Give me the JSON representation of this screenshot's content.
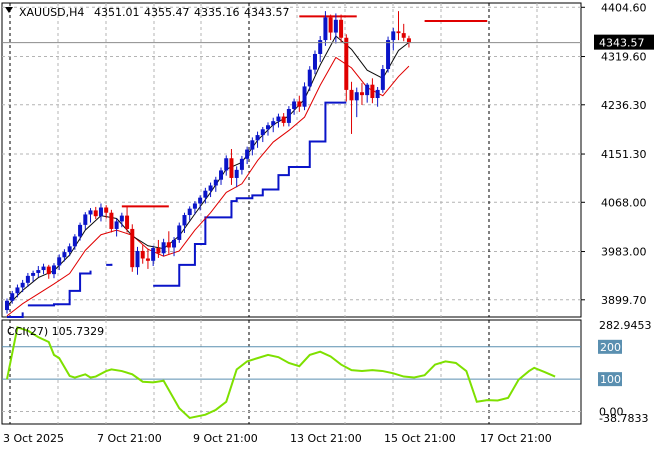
{
  "header": {
    "symbol": "XAUUSD,H4",
    "open": "4351.01",
    "high": "4355.47",
    "low": "4335.16",
    "close": "4343.57"
  },
  "price_tag": "4343.57",
  "cci_label": "CCI(27) 105.7329",
  "colors": {
    "bull": "#0a14c8",
    "bear": "#e00000",
    "fast_ma": "#0a0a0a",
    "slow_ma": "#e00000",
    "stop_line": "#0a14c8",
    "cci_line": "#7ee000",
    "level_line": "#5a8fb0",
    "grid": "#b4b4b4"
  },
  "chart_data": [
    {
      "type": "candlestick",
      "name": "XAUUSD H4",
      "price_axis_ticks": [
        "4404.60",
        "4319.60",
        "4236.30",
        "4151.30",
        "4068.00",
        "3983.00",
        "3899.70"
      ],
      "time_axis_ticks": [
        "3 Oct 2025",
        "7 Oct 21:00",
        "9 Oct 21:00",
        "13 Oct 21:00",
        "15 Oct 21:00",
        "17 Oct 21:00"
      ],
      "ylim": [
        3870,
        4412
      ],
      "candles": [
        [
          3882,
          3902,
          3876,
          3898
        ],
        [
          3898,
          3915,
          3893,
          3911
        ],
        [
          3911,
          3926,
          3904,
          3921
        ],
        [
          3921,
          3934,
          3913,
          3929
        ],
        [
          3929,
          3946,
          3922,
          3941
        ],
        [
          3941,
          3950,
          3931,
          3946
        ],
        [
          3946,
          3958,
          3939,
          3951
        ],
        [
          3951,
          3962,
          3944,
          3957
        ],
        [
          3957,
          3960,
          3936,
          3944
        ],
        [
          3944,
          3963,
          3937,
          3959
        ],
        [
          3959,
          3978,
          3951,
          3973
        ],
        [
          3973,
          3987,
          3966,
          3982
        ],
        [
          3982,
          3997,
          3975,
          3992
        ],
        [
          3992,
          4013,
          3986,
          4009
        ],
        [
          4009,
          4033,
          4002,
          4029
        ],
        [
          4029,
          4051,
          4021,
          4047
        ],
        [
          4047,
          4058,
          4033,
          4054
        ],
        [
          4054,
          4060,
          4039,
          4044
        ],
        [
          4044,
          4066,
          4035,
          4059
        ],
        [
          4059,
          4063,
          4040,
          4050
        ],
        [
          4050,
          4055,
          4016,
          4022
        ],
        [
          4022,
          4040,
          4009,
          4035
        ],
        [
          4035,
          4050,
          4025,
          4045
        ],
        [
          4045,
          4060,
          4016,
          4022
        ],
        [
          4022,
          4030,
          3948,
          3956
        ],
        [
          3956,
          3991,
          3943,
          3984
        ],
        [
          3984,
          3994,
          3962,
          3971
        ],
        [
          3971,
          3988,
          3953,
          3967
        ],
        [
          3967,
          3993,
          3958,
          3989
        ],
        [
          3989,
          4003,
          3972,
          3980
        ],
        [
          3980,
          4005,
          3975,
          3999
        ],
        [
          3999,
          4018,
          3979,
          3990
        ],
        [
          3990,
          4008,
          3975,
          4003
        ],
        [
          4003,
          4033,
          3998,
          4028
        ],
        [
          4028,
          4050,
          4015,
          4046
        ],
        [
          4046,
          4061,
          4036,
          4057
        ],
        [
          4057,
          4070,
          4047,
          4066
        ],
        [
          4066,
          4080,
          4054,
          4076
        ],
        [
          4076,
          4093,
          4066,
          4088
        ],
        [
          4088,
          4102,
          4077,
          4097
        ],
        [
          4097,
          4112,
          4086,
          4107
        ],
        [
          4107,
          4128,
          4098,
          4123
        ],
        [
          4123,
          4149,
          4114,
          4144
        ],
        [
          4144,
          4160,
          4098,
          4110
        ],
        [
          4110,
          4130,
          4094,
          4124
        ],
        [
          4124,
          4148,
          4116,
          4143
        ],
        [
          4143,
          4164,
          4134,
          4159
        ],
        [
          4159,
          4180,
          4149,
          4175
        ],
        [
          4175,
          4190,
          4162,
          4184
        ],
        [
          4184,
          4198,
          4172,
          4194
        ],
        [
          4194,
          4206,
          4183,
          4201
        ],
        [
          4201,
          4214,
          4189,
          4208
        ],
        [
          4208,
          4221,
          4197,
          4216
        ],
        [
          4216,
          4222,
          4199,
          4205
        ],
        [
          4205,
          4234,
          4199,
          4229
        ],
        [
          4229,
          4247,
          4219,
          4242
        ],
        [
          4242,
          4252,
          4224,
          4233
        ],
        [
          4233,
          4275,
          4227,
          4268
        ],
        [
          4268,
          4303,
          4260,
          4297
        ],
        [
          4297,
          4330,
          4289,
          4324
        ],
        [
          4324,
          4355,
          4310,
          4348
        ],
        [
          4348,
          4398,
          4338,
          4387
        ],
        [
          4387,
          4392,
          4348,
          4361
        ],
        [
          4361,
          4394,
          4342,
          4383
        ],
        [
          4383,
          4392,
          4344,
          4352
        ],
        [
          4352,
          4358,
          4242,
          4262
        ],
        [
          4262,
          4276,
          4186,
          4244
        ],
        [
          4244,
          4266,
          4215,
          4258
        ],
        [
          4258,
          4274,
          4236,
          4253
        ],
        [
          4253,
          4274,
          4240,
          4271
        ],
        [
          4271,
          4282,
          4239,
          4248
        ],
        [
          4248,
          4267,
          4233,
          4262
        ],
        [
          4262,
          4305,
          4257,
          4298
        ],
        [
          4298,
          4354,
          4292,
          4348
        ],
        [
          4348,
          4369,
          4330,
          4363
        ],
        [
          4363,
          4398,
          4348,
          4360
        ],
        [
          4360,
          4376,
          4346,
          4352
        ],
        [
          4351.01,
          4355.47,
          4335.16,
          4343.57
        ]
      ],
      "fast_ma": [
        [
          0,
          3889
        ],
        [
          3,
          3916
        ],
        [
          6,
          3938
        ],
        [
          9,
          3950
        ],
        [
          12,
          3977
        ],
        [
          15,
          4020
        ],
        [
          18,
          4045
        ],
        [
          21,
          4040
        ],
        [
          24,
          4010
        ],
        [
          27,
          3993
        ],
        [
          30,
          3988
        ],
        [
          33,
          4010
        ],
        [
          36,
          4048
        ],
        [
          39,
          4085
        ],
        [
          42,
          4125
        ],
        [
          45,
          4137
        ],
        [
          48,
          4175
        ],
        [
          51,
          4202
        ],
        [
          54,
          4217
        ],
        [
          57,
          4246
        ],
        [
          60,
          4305
        ],
        [
          63,
          4355
        ],
        [
          66,
          4332
        ],
        [
          69,
          4296
        ],
        [
          72,
          4282
        ],
        [
          75,
          4330
        ],
        [
          77,
          4344
        ]
      ],
      "slow_ma": [
        [
          0,
          3872
        ],
        [
          3,
          3893
        ],
        [
          6,
          3910
        ],
        [
          9,
          3927
        ],
        [
          12,
          3945
        ],
        [
          15,
          3985
        ],
        [
          18,
          4012
        ],
        [
          21,
          4020
        ],
        [
          24,
          4011
        ],
        [
          27,
          3987
        ],
        [
          30,
          3975
        ],
        [
          33,
          3984
        ],
        [
          36,
          4020
        ],
        [
          39,
          4050
        ],
        [
          42,
          4085
        ],
        [
          45,
          4100
        ],
        [
          48,
          4140
        ],
        [
          51,
          4172
        ],
        [
          54,
          4192
        ],
        [
          57,
          4215
        ],
        [
          60,
          4270
        ],
        [
          63,
          4318
        ],
        [
          66,
          4300
        ],
        [
          69,
          4266
        ],
        [
          72,
          4252
        ],
        [
          75,
          4285
        ],
        [
          77,
          4303
        ]
      ],
      "stop_segments": [
        [
          [
            0,
            3870
          ],
          [
            3,
            3878
          ]
        ],
        [
          [
            4,
            3890
          ],
          [
            9,
            3892
          ],
          [
            12,
            3915
          ],
          [
            14,
            3945
          ],
          [
            16,
            3950
          ]
        ],
        [
          [
            19,
            3960
          ],
          [
            20,
            3962
          ]
        ],
        [
          [
            28,
            3924
          ],
          [
            30,
            3924
          ],
          [
            33,
            3960
          ],
          [
            36,
            3996
          ],
          [
            38,
            4042
          ],
          [
            41,
            4042
          ],
          [
            43,
            4070
          ],
          [
            44,
            4075
          ],
          [
            47,
            4080
          ],
          [
            49,
            4090
          ],
          [
            52,
            4115
          ],
          [
            54,
            4129
          ],
          [
            58,
            4173
          ],
          [
            61,
            4240
          ],
          [
            62,
            4240
          ],
          [
            65,
            4240
          ]
        ]
      ],
      "resistance_lines": [
        {
          "x0": 22,
          "x1": 31,
          "y": 4061
        },
        {
          "x0": 56,
          "x1": 67,
          "y": 4389
        },
        {
          "x0": 80,
          "x1": 92,
          "y": 4381
        }
      ]
    },
    {
      "type": "line",
      "name": "CCI(27)",
      "value": "105.7329",
      "axis_ticks": [
        "282.9453",
        "200",
        "100",
        "0.00",
        "-38.7833"
      ],
      "ylim": [
        -38.7833,
        282.9453
      ],
      "levels": [
        200,
        100
      ],
      "series": [
        {
          "values": [
            [
              0,
              100
            ],
            [
              2,
              260
            ],
            [
              4,
              250
            ],
            [
              6,
              230
            ],
            [
              8,
              215
            ],
            [
              9,
              175
            ],
            [
              10,
              165
            ],
            [
              12,
              110
            ],
            [
              13,
              105
            ],
            [
              15,
              115
            ],
            [
              16,
              105
            ],
            [
              17,
              108
            ],
            [
              19,
              125
            ],
            [
              20,
              130
            ],
            [
              22,
              125
            ],
            [
              24,
              115
            ],
            [
              26,
              92
            ],
            [
              28,
              90
            ],
            [
              30,
              95
            ],
            [
              33,
              10
            ],
            [
              35,
              -20
            ],
            [
              38,
              -10
            ],
            [
              40,
              5
            ],
            [
              42,
              30
            ],
            [
              44,
              130
            ],
            [
              46,
              155
            ],
            [
              48,
              165
            ],
            [
              50,
              175
            ],
            [
              52,
              168
            ],
            [
              54,
              150
            ],
            [
              56,
              140
            ],
            [
              58,
              175
            ],
            [
              60,
              185
            ],
            [
              62,
              170
            ],
            [
              64,
              145
            ],
            [
              66,
              128
            ],
            [
              68,
              125
            ],
            [
              70,
              128
            ],
            [
              72,
              125
            ],
            [
              74,
              118
            ],
            [
              76,
              108
            ],
            [
              78,
              105
            ],
            [
              80,
              112
            ],
            [
              82,
              145
            ],
            [
              84,
              155
            ],
            [
              86,
              150
            ],
            [
              88,
              125
            ],
            [
              90,
              30
            ],
            [
              92,
              35
            ],
            [
              94,
              34
            ],
            [
              96,
              42
            ],
            [
              98,
              98
            ],
            [
              100,
              125
            ],
            [
              101,
              135
            ],
            [
              103,
              122
            ],
            [
              105,
              108
            ]
          ]
        }
      ]
    }
  ]
}
